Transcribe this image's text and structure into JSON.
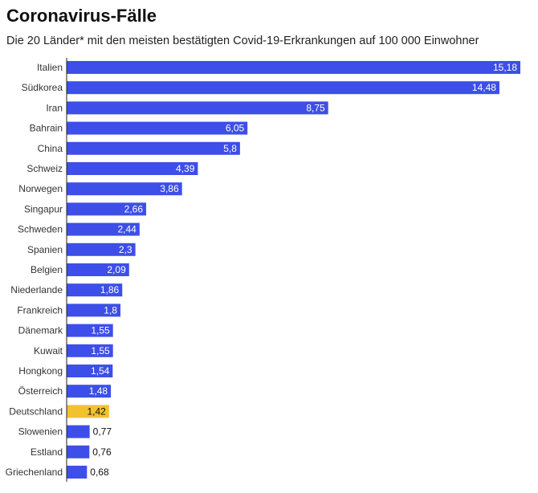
{
  "header": {
    "title": "Coronavirus-Fälle",
    "subtitle": "Die 20 Länder* mit den meisten bestätigten Covid-19-Erkrankungen auf 100 000 Einwohner"
  },
  "colors": {
    "bar": "#3d4fe8",
    "highlight": "#f2c12e",
    "value_inside": "#ffffff",
    "value_outside": "#111111",
    "value_highlight": "#111111",
    "axis": "#222222"
  },
  "chart_data": {
    "type": "bar",
    "orientation": "horizontal",
    "title": "Coronavirus-Fälle",
    "subtitle": "Die 20 Länder* mit den meisten bestätigten Covid-19-Erkrankungen auf 100 000 Einwohner",
    "xlabel": "",
    "ylabel": "",
    "xlim": [
      0,
      15.18
    ],
    "grid": false,
    "legend": "none",
    "highlight_category": "Deutschland",
    "categories": [
      "Italien",
      "Südkorea",
      "Iran",
      "Bahrain",
      "China",
      "Schweiz",
      "Norwegen",
      "Singapur",
      "Schweden",
      "Spanien",
      "Belgien",
      "Niederlande",
      "Frankreich",
      "Dänemark",
      "Kuwait",
      "Hongkong",
      "Österreich",
      "Deutschland",
      "Slowenien",
      "Estland",
      "Griechenland"
    ],
    "values": [
      15.18,
      14.48,
      8.75,
      6.05,
      5.8,
      4.39,
      3.86,
      2.66,
      2.44,
      2.3,
      2.09,
      1.86,
      1.8,
      1.55,
      1.55,
      1.54,
      1.48,
      1.42,
      0.77,
      0.76,
      0.68
    ],
    "value_labels": [
      "15,18",
      "14,48",
      "8,75",
      "6,05",
      "5,8",
      "4,39",
      "3,86",
      "2,66",
      "2,44",
      "2,3",
      "2,09",
      "1,86",
      "1,8",
      "1,55",
      "1,55",
      "1,54",
      "1,48",
      "1,42",
      "0,77",
      "0,76",
      "0,68"
    ]
  }
}
